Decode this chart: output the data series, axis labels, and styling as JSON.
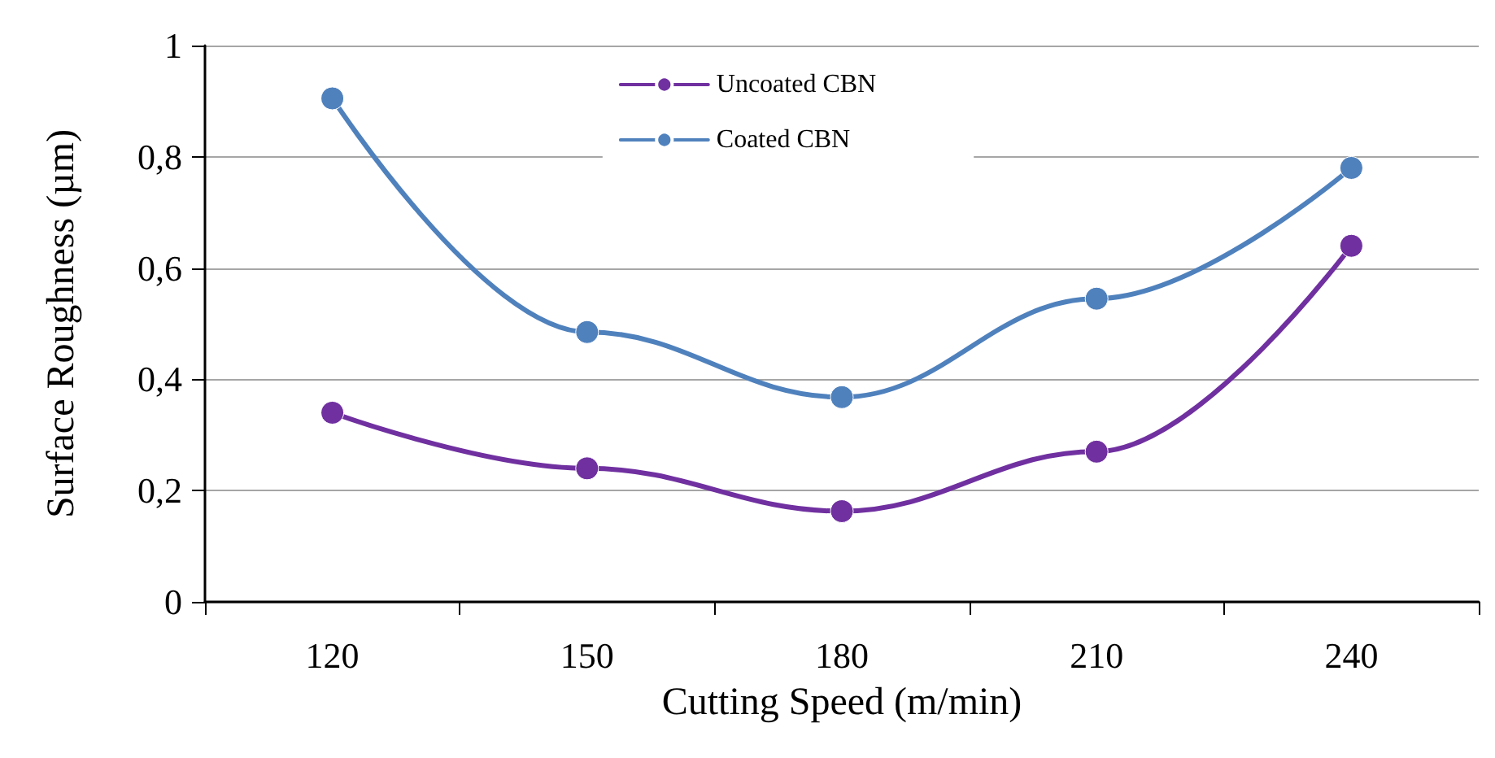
{
  "chart_data": {
    "type": "line",
    "xlabel": "Cutting Speed (m/min)",
    "ylabel": "Surface Roughness (µm)",
    "categories": [
      "120",
      "150",
      "180",
      "210",
      "240"
    ],
    "series": [
      {
        "name": "Uncoated CBN",
        "color": "#7030a0",
        "values": [
          0.34,
          0.24,
          0.163,
          0.27,
          0.64
        ]
      },
      {
        "name": "Coated CBN",
        "color": "#4f81bd",
        "values": [
          0.905,
          0.485,
          0.368,
          0.545,
          0.78
        ]
      }
    ],
    "ylim": [
      0,
      1
    ],
    "yticks": [
      0,
      {
        "value": 0.2,
        "label": "0,2"
      },
      {
        "value": 0.4,
        "label": "0,4"
      },
      {
        "value": 0.6,
        "label": "0,6"
      },
      {
        "value": 0.8,
        "label": "0,8"
      },
      1
    ],
    "grid": "y",
    "legend": "top",
    "marker": "circle",
    "line_style": "solid"
  }
}
